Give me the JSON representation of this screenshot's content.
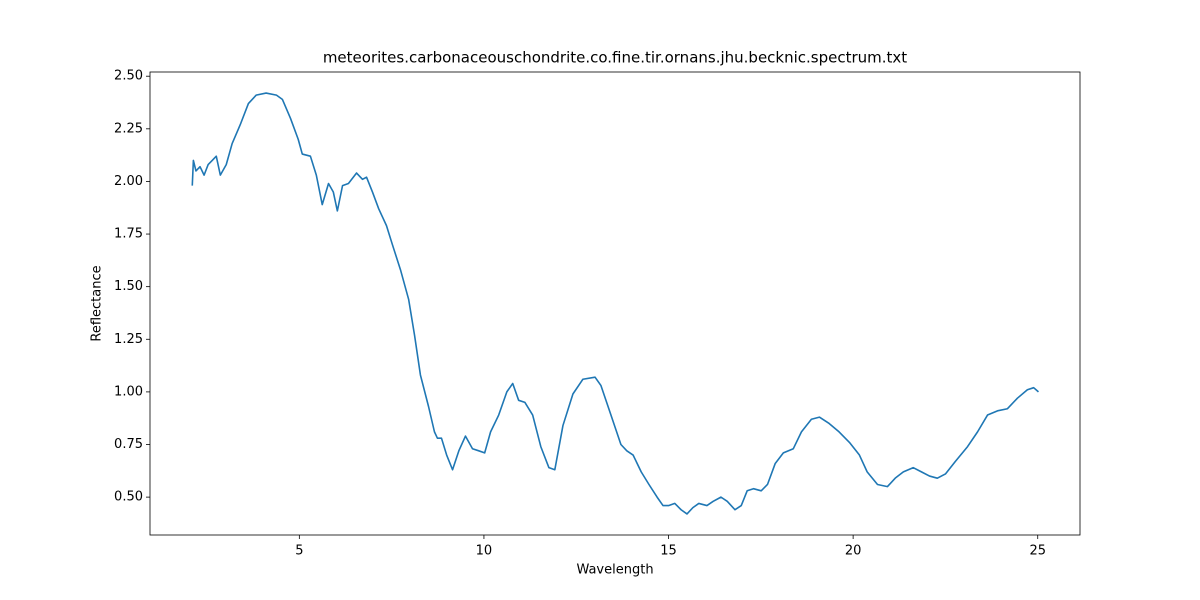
{
  "chart_data": {
    "type": "line",
    "title": "meteorites.carbonaceouschondrite.co.fine.tir.ornans.jhu.becknic.spectrum.txt",
    "x_label": "Wavelength",
    "y_label": "Reflectance",
    "x": [
      2.1,
      2.13,
      2.2,
      2.31,
      2.42,
      2.53,
      2.64,
      2.75,
      2.86,
      3.02,
      3.18,
      3.4,
      3.62,
      3.83,
      4.1,
      4.38,
      4.54,
      4.76,
      4.97,
      5.08,
      5.3,
      5.46,
      5.62,
      5.79,
      5.92,
      6.03,
      6.17,
      6.33,
      6.55,
      6.71,
      6.82,
      6.98,
      7.15,
      7.36,
      7.52,
      7.74,
      7.96,
      8.12,
      8.28,
      8.5,
      8.66,
      8.74,
      8.85,
      8.99,
      9.15,
      9.32,
      9.5,
      9.69,
      9.86,
      10.02,
      10.18,
      10.4,
      10.62,
      10.78,
      10.94,
      11.11,
      11.32,
      11.54,
      11.76,
      11.92,
      12.14,
      12.41,
      12.68,
      13.01,
      13.17,
      13.44,
      13.71,
      13.87,
      14.04,
      14.26,
      14.47,
      14.69,
      14.85,
      15.01,
      15.17,
      15.34,
      15.5,
      15.66,
      15.82,
      16.04,
      16.21,
      16.42,
      16.59,
      16.8,
      16.97,
      17.13,
      17.3,
      17.51,
      17.68,
      17.89,
      18.11,
      18.38,
      18.6,
      18.87,
      19.09,
      19.35,
      19.62,
      19.9,
      20.17,
      20.38,
      20.66,
      20.93,
      21.14,
      21.36,
      21.63,
      21.85,
      22.07,
      22.28,
      22.5,
      22.77,
      23.1,
      23.37,
      23.64,
      23.91,
      24.18,
      24.45,
      24.72,
      24.89,
      25.02
    ],
    "series": [
      {
        "color": "#1f77b4",
        "values": [
          1.98,
          2.1,
          2.05,
          2.07,
          2.03,
          2.08,
          2.1,
          2.12,
          2.03,
          2.08,
          2.18,
          2.27,
          2.37,
          2.41,
          2.42,
          2.41,
          2.39,
          2.3,
          2.2,
          2.13,
          2.12,
          2.03,
          1.89,
          1.99,
          1.95,
          1.86,
          1.98,
          1.99,
          2.04,
          2.01,
          2.02,
          1.95,
          1.87,
          1.79,
          1.7,
          1.58,
          1.44,
          1.27,
          1.08,
          0.93,
          0.81,
          0.78,
          0.78,
          0.7,
          0.63,
          0.72,
          0.79,
          0.73,
          0.72,
          0.71,
          0.81,
          0.89,
          1.0,
          1.04,
          0.96,
          0.95,
          0.89,
          0.74,
          0.64,
          0.63,
          0.84,
          0.99,
          1.06,
          1.07,
          1.03,
          0.89,
          0.75,
          0.72,
          0.7,
          0.62,
          0.56,
          0.5,
          0.46,
          0.46,
          0.47,
          0.44,
          0.42,
          0.45,
          0.47,
          0.46,
          0.48,
          0.5,
          0.48,
          0.44,
          0.46,
          0.53,
          0.54,
          0.53,
          0.56,
          0.66,
          0.71,
          0.73,
          0.81,
          0.87,
          0.88,
          0.85,
          0.81,
          0.76,
          0.7,
          0.62,
          0.56,
          0.55,
          0.59,
          0.62,
          0.64,
          0.62,
          0.6,
          0.59,
          0.61,
          0.67,
          0.74,
          0.81,
          0.89,
          0.91,
          0.92,
          0.97,
          1.01,
          1.02,
          1.0
        ]
      }
    ],
    "xlim": [
      0.955,
      26.145
    ],
    "ylim": [
      0.32,
      2.52
    ],
    "xticks": [
      5,
      10,
      15,
      20,
      25
    ],
    "yticks": [
      {
        "value": 0.5,
        "label": "0.50"
      },
      {
        "value": 0.75,
        "label": "0.75"
      },
      {
        "value": 1,
        "label": "1.00"
      },
      {
        "value": 1.25,
        "label": "1.25"
      },
      {
        "value": 1.5,
        "label": "1.50"
      },
      {
        "value": 1.75,
        "label": "1.75"
      },
      {
        "value": 2,
        "label": "2.00"
      },
      {
        "value": 2.25,
        "label": "2.25"
      },
      {
        "value": 2.5,
        "label": "2.50"
      }
    ],
    "grid": false
  }
}
